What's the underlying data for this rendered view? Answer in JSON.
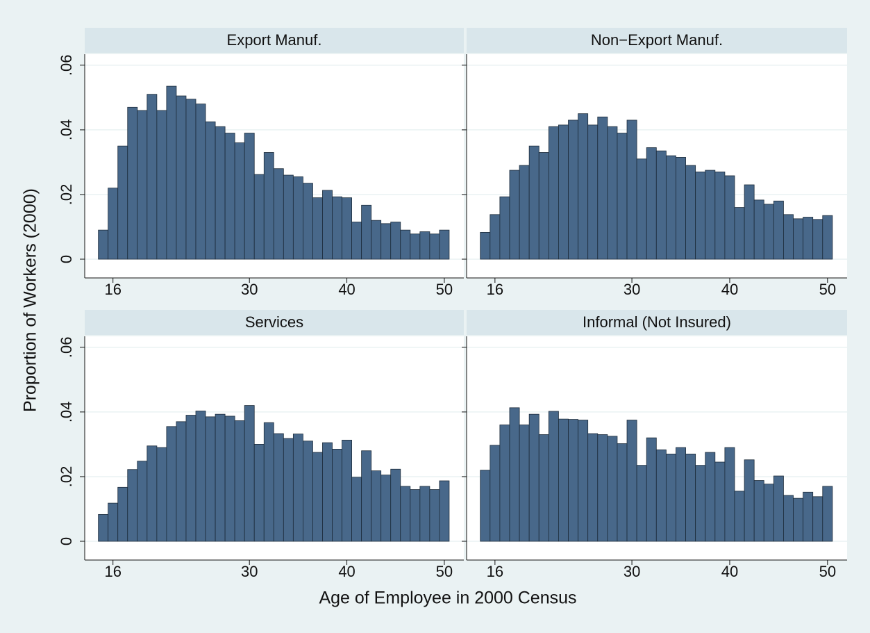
{
  "chart_data": [
    {
      "type": "histogram",
      "title": "Export Manuf.",
      "color": "#48688a",
      "bins": [
        14.5,
        15.5,
        16.5,
        17.5,
        18.5,
        19.5,
        20.5,
        21.5,
        22.5,
        23.5,
        24.5,
        25.5,
        26.5,
        27.5,
        28.5,
        29.5,
        30.5,
        31.5,
        32.5,
        33.5,
        34.5,
        35.5,
        36.5,
        37.5,
        38.5,
        39.5,
        40.5,
        41.5,
        42.5,
        43.5,
        44.5,
        45.5,
        46.5,
        47.5,
        48.5,
        49.5,
        50.5
      ],
      "values": [
        0.009,
        0.022,
        0.035,
        0.047,
        0.046,
        0.051,
        0.046,
        0.0535,
        0.0505,
        0.0495,
        0.048,
        0.0425,
        0.041,
        0.039,
        0.036,
        0.039,
        0.0262,
        0.033,
        0.028,
        0.026,
        0.0255,
        0.0235,
        0.019,
        0.0213,
        0.0193,
        0.019,
        0.0115,
        0.0167,
        0.012,
        0.011,
        0.0115,
        0.009,
        0.0078,
        0.0085,
        0.0078,
        0.009
      ],
      "xlim": [
        13.1,
        52
      ],
      "xticks": [
        16,
        30,
        40,
        50
      ],
      "ylim": [
        -0.0058,
        0.0634
      ],
      "yticks": [
        0,
        {
          "value": 0.02,
          "label": ".02"
        },
        {
          "value": 0.04,
          "label": ".04"
        },
        {
          "value": 0.06,
          "label": ".06"
        }
      ],
      "grid": true
    },
    {
      "type": "histogram",
      "title": "Non−Export Manuf.",
      "color": "#48688a",
      "bins": [
        14.5,
        15.5,
        16.5,
        17.5,
        18.5,
        19.5,
        20.5,
        21.5,
        22.5,
        23.5,
        24.5,
        25.5,
        26.5,
        27.5,
        28.5,
        29.5,
        30.5,
        31.5,
        32.5,
        33.5,
        34.5,
        35.5,
        36.5,
        37.5,
        38.5,
        39.5,
        40.5,
        41.5,
        42.5,
        43.5,
        44.5,
        45.5,
        46.5,
        47.5,
        48.5,
        49.5,
        50.5
      ],
      "values": [
        0.0083,
        0.0138,
        0.0193,
        0.0275,
        0.029,
        0.035,
        0.033,
        0.041,
        0.0415,
        0.043,
        0.045,
        0.0415,
        0.044,
        0.041,
        0.039,
        0.043,
        0.031,
        0.0345,
        0.0335,
        0.032,
        0.0315,
        0.029,
        0.027,
        0.0275,
        0.027,
        0.0258,
        0.016,
        0.023,
        0.0183,
        0.017,
        0.018,
        0.0138,
        0.0125,
        0.013,
        0.0123,
        0.0135
      ],
      "xlim": [
        13.1,
        52
      ],
      "xticks": [
        16,
        30,
        40,
        50
      ],
      "ylim": [
        -0.0058,
        0.0634
      ],
      "yticks": [
        0,
        {
          "value": 0.02,
          "label": ".02"
        },
        {
          "value": 0.04,
          "label": ".04"
        },
        {
          "value": 0.06,
          "label": ".06"
        }
      ],
      "grid": true
    },
    {
      "type": "histogram",
      "title": "Services",
      "color": "#48688a",
      "bins": [
        14.5,
        15.5,
        16.5,
        17.5,
        18.5,
        19.5,
        20.5,
        21.5,
        22.5,
        23.5,
        24.5,
        25.5,
        26.5,
        27.5,
        28.5,
        29.5,
        30.5,
        31.5,
        32.5,
        33.5,
        34.5,
        35.5,
        36.5,
        37.5,
        38.5,
        39.5,
        40.5,
        41.5,
        42.5,
        43.5,
        44.5,
        45.5,
        46.5,
        47.5,
        48.5,
        49.5,
        50.5
      ],
      "values": [
        0.0083,
        0.0118,
        0.0167,
        0.0222,
        0.0248,
        0.0295,
        0.029,
        0.0355,
        0.037,
        0.039,
        0.0403,
        0.0385,
        0.0393,
        0.0387,
        0.0373,
        0.042,
        0.03,
        0.0367,
        0.0333,
        0.0318,
        0.0332,
        0.031,
        0.0275,
        0.0305,
        0.0285,
        0.0313,
        0.0198,
        0.028,
        0.0218,
        0.0205,
        0.0223,
        0.017,
        0.016,
        0.017,
        0.016,
        0.0187
      ],
      "xlim": [
        13.1,
        52
      ],
      "xticks": [
        16,
        30,
        40,
        50
      ],
      "ylim": [
        -0.0058,
        0.0634
      ],
      "yticks": [
        0,
        {
          "value": 0.02,
          "label": ".02"
        },
        {
          "value": 0.04,
          "label": ".04"
        },
        {
          "value": 0.06,
          "label": ".06"
        }
      ],
      "grid": true
    },
    {
      "type": "histogram",
      "title": "Informal (Not Insured)",
      "color": "#48688a",
      "bins": [
        14.5,
        15.5,
        16.5,
        17.5,
        18.5,
        19.5,
        20.5,
        21.5,
        22.5,
        23.5,
        24.5,
        25.5,
        26.5,
        27.5,
        28.5,
        29.5,
        30.5,
        31.5,
        32.5,
        33.5,
        34.5,
        35.5,
        36.5,
        37.5,
        38.5,
        39.5,
        40.5,
        41.5,
        42.5,
        43.5,
        44.5,
        45.5,
        46.5,
        47.5,
        48.5,
        49.5,
        50.5
      ],
      "values": [
        0.022,
        0.0297,
        0.036,
        0.0413,
        0.036,
        0.0393,
        0.033,
        0.0402,
        0.0378,
        0.0377,
        0.0375,
        0.0333,
        0.033,
        0.0325,
        0.0302,
        0.0375,
        0.0235,
        0.032,
        0.0283,
        0.027,
        0.029,
        0.027,
        0.0235,
        0.0275,
        0.0245,
        0.029,
        0.0155,
        0.0252,
        0.0188,
        0.0177,
        0.0202,
        0.0142,
        0.0133,
        0.0152,
        0.0138,
        0.017
      ],
      "xlim": [
        13.1,
        52
      ],
      "xticks": [
        16,
        30,
        40,
        50
      ],
      "ylim": [
        -0.0058,
        0.0634
      ],
      "yticks": [
        0,
        {
          "value": 0.02,
          "label": ".02"
        },
        {
          "value": 0.04,
          "label": ".04"
        },
        {
          "value": 0.06,
          "label": ".06"
        }
      ],
      "grid": true
    }
  ],
  "ylabel": "Proportion of Workers (2000)",
  "xlabel": "Age of Employee in 2000 Census"
}
